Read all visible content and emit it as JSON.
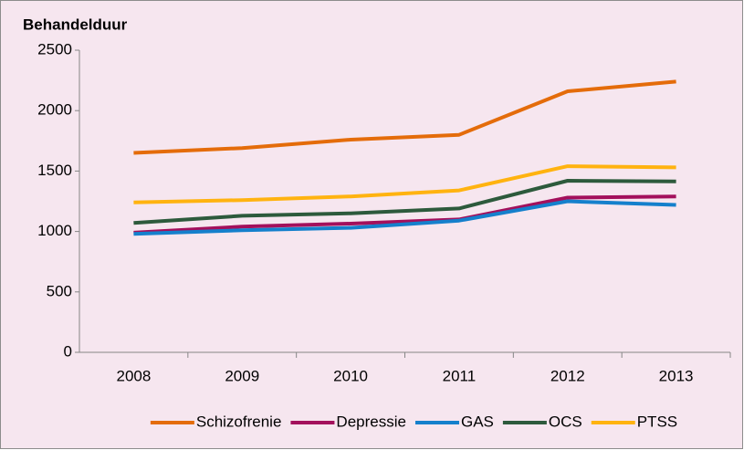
{
  "chart_data": {
    "type": "line",
    "title": "Behandelduur",
    "categories": [
      "2008",
      "2009",
      "2010",
      "2011",
      "2012",
      "2013"
    ],
    "series": [
      {
        "name": "Schizofrenie",
        "color": "#e46c0a",
        "values": [
          1650,
          1690,
          1760,
          1800,
          2160,
          2240
        ]
      },
      {
        "name": "Depressie",
        "color": "#a3105c",
        "values": [
          990,
          1040,
          1065,
          1100,
          1280,
          1290
        ]
      },
      {
        "name": "GAS",
        "color": "#1580cc",
        "values": [
          980,
          1010,
          1030,
          1090,
          1250,
          1220
        ]
      },
      {
        "name": "OCS",
        "color": "#2d5a3c",
        "values": [
          1070,
          1130,
          1150,
          1190,
          1420,
          1415
        ]
      },
      {
        "name": "PTSS",
        "color": "#ffb310",
        "values": [
          1240,
          1260,
          1290,
          1340,
          1540,
          1530
        ]
      }
    ],
    "ylim": [
      0,
      2500
    ],
    "yticks": [
      0,
      500,
      1000,
      1500,
      2000,
      2500
    ],
    "grid": false,
    "legend": "bottom",
    "background": "#f6e6ef"
  }
}
